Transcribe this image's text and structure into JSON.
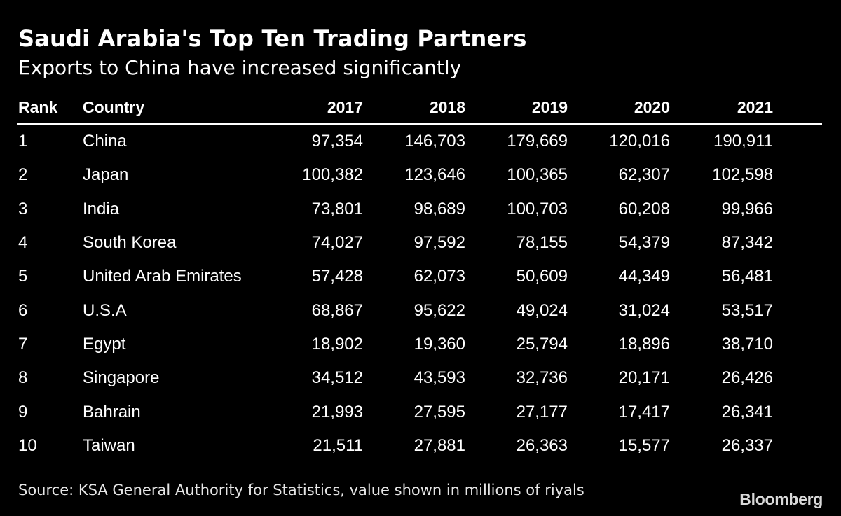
{
  "title": "Saudi Arabia's Top Ten Trading Partners",
  "subtitle": "Exports to China have increased significantly",
  "source": "Source: KSA General Authority for Statistics, value shown in millions of riyals",
  "brand": "Bloomberg",
  "chart_data": {
    "type": "table",
    "title": "Saudi Arabia's Top Ten Trading Partners",
    "subtitle": "Exports to China have increased significantly",
    "columns": [
      "Rank",
      "Country",
      "2017",
      "2018",
      "2019",
      "2020",
      "2021"
    ],
    "rows": [
      [
        "1",
        "China",
        "97,354",
        "146,703",
        "179,669",
        "120,016",
        "190,911"
      ],
      [
        "2",
        "Japan",
        "100,382",
        "123,646",
        "100,365",
        "62,307",
        "102,598"
      ],
      [
        "3",
        "India",
        "73,801",
        "98,689",
        "100,703",
        "60,208",
        "99,966"
      ],
      [
        "4",
        "South Korea",
        "74,027",
        "97,592",
        "78,155",
        "54,379",
        "87,342"
      ],
      [
        "5",
        "United Arab Emirates",
        "57,428",
        "62,073",
        "50,609",
        "44,349",
        "56,481"
      ],
      [
        "6",
        "U.S.A",
        "68,867",
        "95,622",
        "49,024",
        "31,024",
        "53,517"
      ],
      [
        "7",
        "Egypt",
        "18,902",
        "19,360",
        "25,794",
        "18,896",
        "38,710"
      ],
      [
        "8",
        "Singapore",
        "34,512",
        "43,593",
        "32,736",
        "20,171",
        "26,426"
      ],
      [
        "9",
        "Bahrain",
        "21,993",
        "27,595",
        "27,177",
        "17,417",
        "26,341"
      ],
      [
        "10",
        "Taiwan",
        "21,511",
        "27,881",
        "26,363",
        "15,577",
        "26,337"
      ]
    ],
    "units": "millions of riyals"
  }
}
